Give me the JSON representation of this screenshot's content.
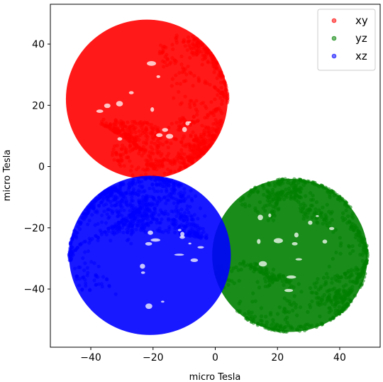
{
  "chart_data": {
    "type": "scatter",
    "title": "",
    "xlabel": "micro Tesla",
    "ylabel": "micro Tesla",
    "xlim": [
      -53,
      53
    ],
    "ylim": [
      -59,
      53
    ],
    "x_ticks": [
      -40,
      -20,
      0,
      20,
      40
    ],
    "y_ticks": [
      -40,
      -20,
      0,
      20,
      40
    ],
    "x_tick_labels": [
      "−40",
      "−20",
      "0",
      "20",
      "40"
    ],
    "y_tick_labels": [
      "−40",
      "−20",
      "0",
      "20",
      "40"
    ],
    "grid": false,
    "legend_position": "top-right",
    "series": [
      {
        "name": "xy",
        "color": "#ff0000",
        "marker": "circle",
        "center": [
          -22,
          22
        ],
        "radius": 26
      },
      {
        "name": "yz",
        "color": "#008000",
        "marker": "circle",
        "center": [
          24,
          -29
        ],
        "radius": 25
      },
      {
        "name": "xz",
        "color": "#0000ff",
        "marker": "circle",
        "center": [
          -21,
          -29
        ],
        "radius": 26
      }
    ]
  }
}
